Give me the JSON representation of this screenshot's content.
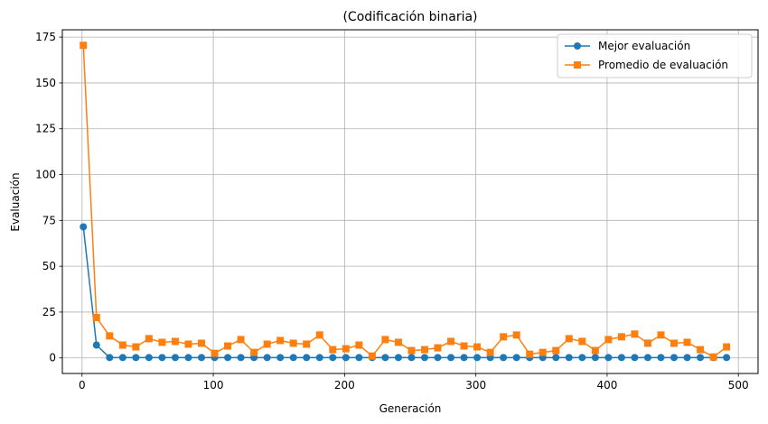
{
  "chart_data": {
    "type": "line",
    "title": "(Codificación binaria)",
    "xlabel": "Generación",
    "ylabel": "Evaluación",
    "xlim": [
      -15,
      515
    ],
    "ylim": [
      -8.5,
      179
    ],
    "xticks": [
      0,
      100,
      200,
      300,
      400,
      500
    ],
    "yticks": [
      0,
      25,
      50,
      75,
      100,
      125,
      150,
      175
    ],
    "grid": true,
    "legend_position": "top-right",
    "x": [
      1,
      11,
      21,
      31,
      41,
      51,
      61,
      71,
      81,
      91,
      101,
      111,
      121,
      131,
      141,
      151,
      161,
      171,
      181,
      191,
      201,
      211,
      221,
      231,
      241,
      251,
      261,
      271,
      281,
      291,
      301,
      311,
      321,
      331,
      341,
      351,
      361,
      371,
      381,
      391,
      401,
      411,
      421,
      431,
      441,
      451,
      461,
      471,
      481,
      491
    ],
    "series": [
      {
        "name": "Mejor evaluación",
        "color": "#1f77b4",
        "marker": "circle",
        "values": [
          71.5,
          7,
          0.2,
          0.2,
          0.2,
          0.2,
          0.2,
          0.2,
          0.2,
          0.2,
          0.2,
          0.2,
          0.2,
          0.2,
          0.2,
          0.2,
          0.2,
          0.2,
          0.2,
          0.2,
          0.2,
          0.2,
          0.2,
          0.2,
          0.2,
          0.2,
          0.2,
          0.2,
          0.2,
          0.2,
          0.2,
          0.2,
          0.2,
          0.2,
          0.2,
          0.2,
          0.2,
          0.2,
          0.2,
          0.2,
          0.2,
          0.2,
          0.2,
          0.2,
          0.2,
          0.2,
          0.2,
          0.2,
          0.2,
          0.2
        ]
      },
      {
        "name": "Promedio de evaluación",
        "color": "#ff7f0e",
        "marker": "square",
        "values": [
          170.5,
          22,
          12,
          7,
          6,
          10.5,
          8.5,
          9,
          7.5,
          8,
          2.5,
          6.5,
          10,
          3,
          7.5,
          9.5,
          8,
          7.5,
          12.5,
          4.5,
          5,
          7,
          1,
          10,
          8.5,
          4,
          4.5,
          5.5,
          9,
          6.5,
          6,
          3,
          11.5,
          12.5,
          2,
          3,
          4,
          10.5,
          9,
          4,
          10,
          11.5,
          13,
          8,
          12.5,
          8,
          8.5,
          4.5,
          0.5,
          6
        ]
      }
    ]
  }
}
